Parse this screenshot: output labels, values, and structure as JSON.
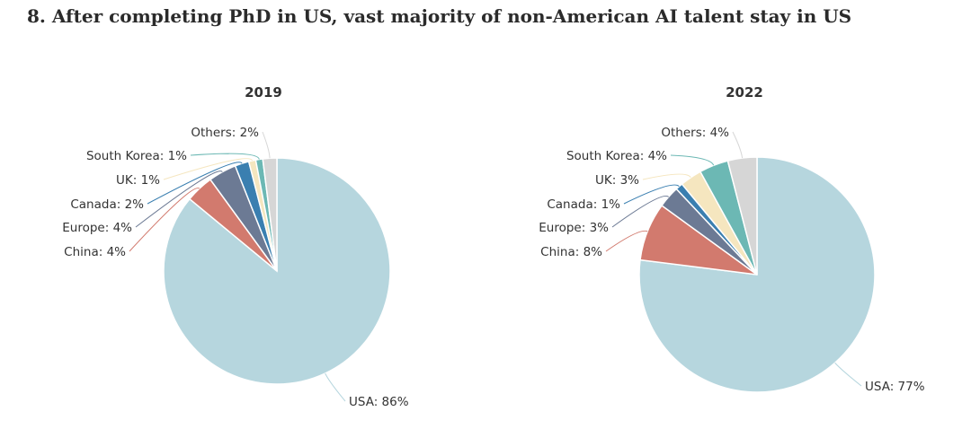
{
  "title": "8. After completing PhD in US, vast majority of non-American AI talent stay in US",
  "colors": {
    "USA": "#b6d6de",
    "China": "#d27a6e",
    "Europe": "#6c7a94",
    "Canada": "#3a7fb0",
    "UK": "#f5e6bf",
    "South Korea": "#6cb8b4",
    "Others": "#d6d6d6"
  },
  "chart_data": [
    {
      "type": "pie",
      "title": "2019",
      "slices": [
        {
          "name": "USA",
          "value": 86,
          "label": "USA: 86%"
        },
        {
          "name": "China",
          "value": 4,
          "label": "China: 4%"
        },
        {
          "name": "Europe",
          "value": 4,
          "label": "Europe: 4%"
        },
        {
          "name": "Canada",
          "value": 2,
          "label": "Canada: 2%"
        },
        {
          "name": "UK",
          "value": 1,
          "label": "UK: 1%"
        },
        {
          "name": "South Korea",
          "value": 1,
          "label": "South Korea: 1%"
        },
        {
          "name": "Others",
          "value": 2,
          "label": "Others: 2%"
        }
      ]
    },
    {
      "type": "pie",
      "title": "2022",
      "slices": [
        {
          "name": "USA",
          "value": 77,
          "label": "USA: 77%"
        },
        {
          "name": "China",
          "value": 8,
          "label": "China: 8%"
        },
        {
          "name": "Europe",
          "value": 3,
          "label": "Europe: 3%"
        },
        {
          "name": "Canada",
          "value": 1,
          "label": "Canada: 1%"
        },
        {
          "name": "UK",
          "value": 3,
          "label": "UK: 3%"
        },
        {
          "name": "South Korea",
          "value": 4,
          "label": "South Korea: 4%"
        },
        {
          "name": "Others",
          "value": 4,
          "label": "Others: 4%"
        }
      ]
    }
  ]
}
